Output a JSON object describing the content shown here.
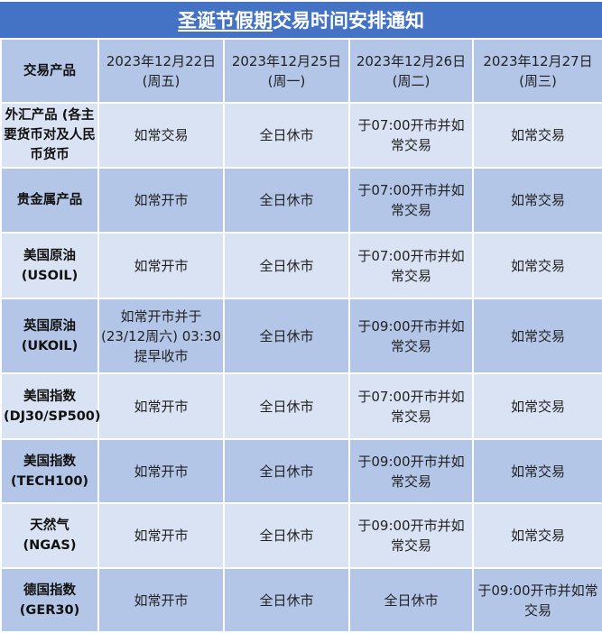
{
  "title": {
    "underlined": "圣诞节假期",
    "rest": "交易时间安排通知"
  },
  "colors": {
    "title_bg": "#4472c4",
    "row_dark": "#b4c6e7",
    "row_light": "#dae3f3"
  },
  "header": {
    "product": "交易产品",
    "dates": [
      {
        "date": "2023年12月22日",
        "weekday": "(周五)"
      },
      {
        "date": "2023年12月25日",
        "weekday": "(周一)"
      },
      {
        "date": "2023年12月26日",
        "weekday": "(周二)"
      },
      {
        "date": "2023年12月27日",
        "weekday": "(周三)"
      }
    ]
  },
  "rows": [
    {
      "product": "外汇产品 (各主要货币对及人民币货币",
      "cells": [
        "如常交易",
        "全日休市",
        "于07:00开市并如常交易",
        "如常交易"
      ]
    },
    {
      "product": "贵金属产品",
      "cells": [
        "如常开市",
        "全日休市",
        "于07:00开市并如常交易",
        "如常交易"
      ]
    },
    {
      "product": "美国原油 (USOIL)",
      "cells": [
        "如常开市",
        "全日休市",
        "于07:00开市并如常交易",
        "如常交易"
      ]
    },
    {
      "product": "英国原油 (UKOIL)",
      "cells": [
        "如常开市并于(23/12周六) 03:30提早收市",
        "全日休市",
        "于09:00开市并如常交易",
        "如常交易"
      ]
    },
    {
      "product": "美国指数 (DJ30/SP500)",
      "cells": [
        "如常开市",
        "全日休市",
        "于07:00开市并如常交易",
        "如常交易"
      ]
    },
    {
      "product": "美国指数 (TECH100)",
      "cells": [
        "如常开市",
        "全日休市",
        "于09:00开市并如常交易",
        "如常交易"
      ]
    },
    {
      "product": "天然气 (NGAS)",
      "cells": [
        "如常开市",
        "全日休市",
        "于09:00开市并如常交易",
        "如常交易"
      ]
    },
    {
      "product": "德国指数 (GER30)",
      "cells": [
        "如常开市",
        "全日休市",
        "全日休市",
        "于09:00开市并如常交易"
      ]
    }
  ]
}
